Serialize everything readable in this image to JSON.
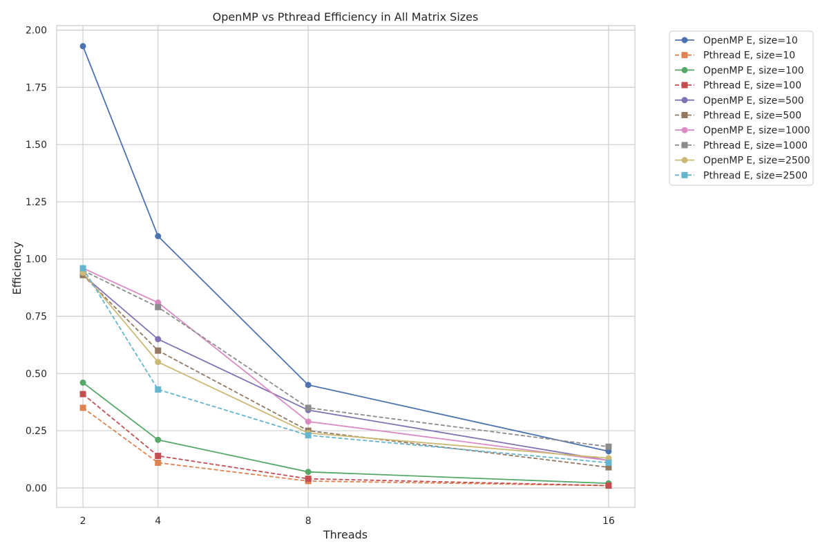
{
  "chart_data": {
    "type": "line",
    "title": "OpenMP vs Pthread Efficiency in All Matrix Sizes",
    "xlabel": "Threads",
    "ylabel": "Efficiency",
    "x": [
      2,
      4,
      8,
      16
    ],
    "x_tick_labels": [
      "2",
      "4",
      "8",
      "16"
    ],
    "y_tick_labels": [
      "0.00",
      "0.25",
      "0.50",
      "0.75",
      "1.00",
      "1.25",
      "1.50",
      "1.75",
      "2.00"
    ],
    "xlim": [
      1.3,
      16.7
    ],
    "ylim": [
      -0.085,
      2.02
    ],
    "grid": true,
    "legend_position": "outside-right-top",
    "series": [
      {
        "name": "OpenMP E, size=10",
        "values": [
          1.93,
          1.1,
          0.45,
          0.16
        ],
        "color": "#4c72b0",
        "dash": "solid",
        "marker": "circle"
      },
      {
        "name": "Pthread E, size=10",
        "values": [
          0.35,
          0.11,
          0.03,
          0.01
        ],
        "color": "#dd8452",
        "dash": "dashed",
        "marker": "square"
      },
      {
        "name": "OpenMP E, size=100",
        "values": [
          0.46,
          0.21,
          0.07,
          0.02
        ],
        "color": "#55a868",
        "dash": "solid",
        "marker": "circle"
      },
      {
        "name": "Pthread E, size=100",
        "values": [
          0.41,
          0.14,
          0.04,
          0.01
        ],
        "color": "#c44e52",
        "dash": "dashed",
        "marker": "square"
      },
      {
        "name": "OpenMP E, size=500",
        "values": [
          0.93,
          0.65,
          0.34,
          0.12
        ],
        "color": "#8172b3",
        "dash": "solid",
        "marker": "circle"
      },
      {
        "name": "Pthread E, size=500",
        "values": [
          0.93,
          0.6,
          0.25,
          0.09
        ],
        "color": "#937860",
        "dash": "dashed",
        "marker": "square"
      },
      {
        "name": "OpenMP E, size=1000",
        "values": [
          0.96,
          0.81,
          0.29,
          0.12
        ],
        "color": "#da8bc3",
        "dash": "solid",
        "marker": "circle"
      },
      {
        "name": "Pthread E, size=1000",
        "values": [
          0.95,
          0.79,
          0.35,
          0.18
        ],
        "color": "#8c8c8c",
        "dash": "dashed",
        "marker": "square"
      },
      {
        "name": "OpenMP E, size=2500",
        "values": [
          0.94,
          0.55,
          0.24,
          0.13
        ],
        "color": "#ccb974",
        "dash": "solid",
        "marker": "circle"
      },
      {
        "name": "Pthread E, size=2500",
        "values": [
          0.96,
          0.43,
          0.23,
          0.11
        ],
        "color": "#64b5cd",
        "dash": "dashed",
        "marker": "square"
      }
    ]
  }
}
